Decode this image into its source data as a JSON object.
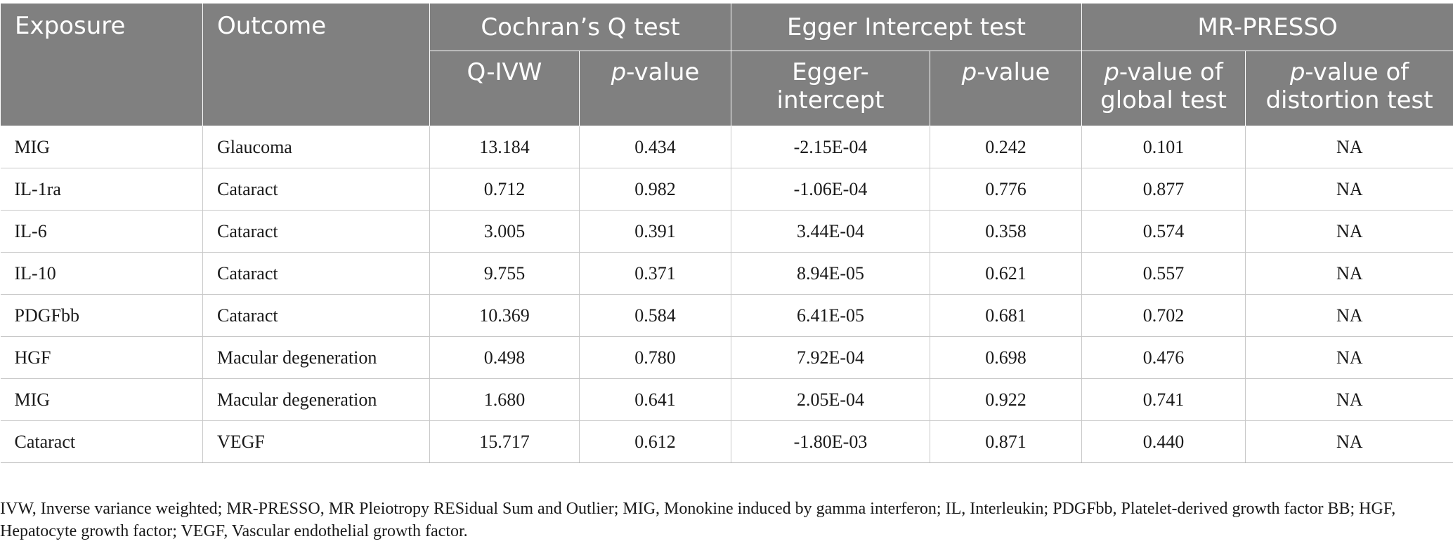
{
  "table": {
    "headers": {
      "exposure": "Exposure",
      "outcome": "Outcome",
      "cochran_group": "Cochran’s Q test",
      "egger_group": "Egger Intercept test",
      "presso_group": "MR-PRESSO",
      "q_ivw": "Q-IVW",
      "p_letter": "p",
      "p_value_suffix": "-value",
      "egger_intercept_line1": "Egger-",
      "egger_intercept_line2": "intercept",
      "global_test_line1_suffix": "-value of",
      "global_test_line2": "global test",
      "distortion_test_line1_suffix": "-value of",
      "distortion_test_line2": "distortion test"
    },
    "rows": [
      {
        "exposure": "MIG",
        "outcome": "Glaucoma",
        "q_ivw": "13.184",
        "q_p": "0.434",
        "egger_intercept": "-2.15E-04",
        "egger_p": "0.242",
        "global_p": "0.101",
        "distortion_p": "NA"
      },
      {
        "exposure": "IL-1ra",
        "outcome": "Cataract",
        "q_ivw": "0.712",
        "q_p": "0.982",
        "egger_intercept": "-1.06E-04",
        "egger_p": "0.776",
        "global_p": "0.877",
        "distortion_p": "NA"
      },
      {
        "exposure": "IL-6",
        "outcome": "Cataract",
        "q_ivw": "3.005",
        "q_p": "0.391",
        "egger_intercept": "3.44E-04",
        "egger_p": "0.358",
        "global_p": "0.574",
        "distortion_p": "NA"
      },
      {
        "exposure": "IL-10",
        "outcome": "Cataract",
        "q_ivw": "9.755",
        "q_p": "0.371",
        "egger_intercept": "8.94E-05",
        "egger_p": "0.621",
        "global_p": "0.557",
        "distortion_p": "NA"
      },
      {
        "exposure": "PDGFbb",
        "outcome": "Cataract",
        "q_ivw": "10.369",
        "q_p": "0.584",
        "egger_intercept": "6.41E-05",
        "egger_p": "0.681",
        "global_p": "0.702",
        "distortion_p": "NA"
      },
      {
        "exposure": "HGF",
        "outcome": "Macular degeneration",
        "q_ivw": "0.498",
        "q_p": "0.780",
        "egger_intercept": "7.92E-04",
        "egger_p": "0.698",
        "global_p": "0.476",
        "distortion_p": "NA"
      },
      {
        "exposure": "MIG",
        "outcome": "Macular degeneration",
        "q_ivw": "1.680",
        "q_p": "0.641",
        "egger_intercept": "2.05E-04",
        "egger_p": "0.922",
        "global_p": "0.741",
        "distortion_p": "NA"
      },
      {
        "exposure": "Cataract",
        "outcome": "VEGF",
        "q_ivw": "15.717",
        "q_p": "0.612",
        "egger_intercept": "-1.80E-03",
        "egger_p": "0.871",
        "global_p": "0.440",
        "distortion_p": "NA"
      }
    ]
  },
  "footnote": "IVW, Inverse variance weighted; MR-PRESSO, MR Pleiotropy RESidual Sum and Outlier; MIG, Monokine induced by gamma interferon; IL, Interleukin; PDGFbb, Platelet-derived growth factor BB; HGF, Hepatocyte growth factor; VEGF, Vascular endothelial growth factor.",
  "colors": {
    "header_background": "#808080",
    "header_text": "#ffffff",
    "grid_line": "#c8c8c8"
  }
}
